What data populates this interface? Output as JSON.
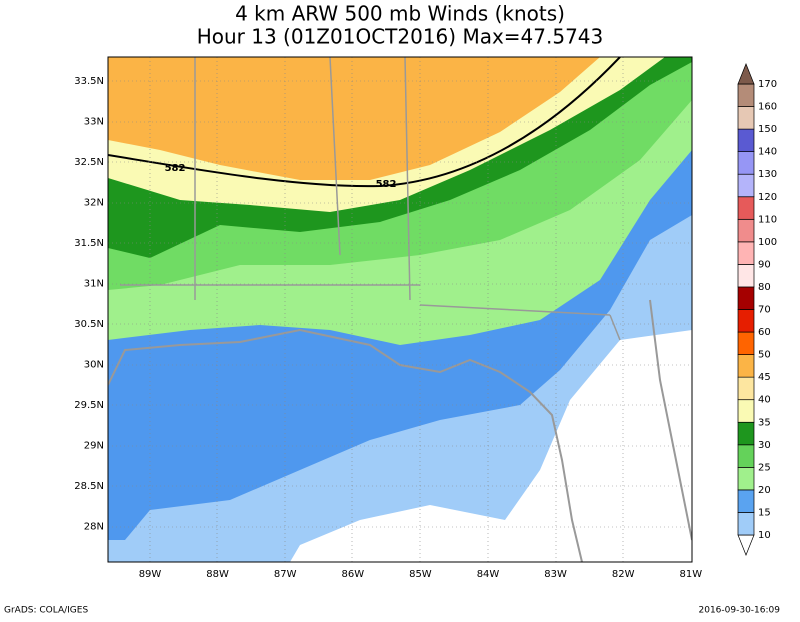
{
  "title": [
    "4 km ARW 500 mb Winds (knots)",
    "Hour 13 (01Z01OCT2016) Max=47.5743"
  ],
  "map": {
    "lat_labels": [
      "33.5N",
      "33N",
      "32.5N",
      "32N",
      "31.5N",
      "31N",
      "30.5N",
      "30N",
      "29.5N",
      "29N",
      "28.5N",
      "28N"
    ],
    "lon_labels": [
      "89W",
      "88W",
      "87W",
      "86W",
      "85W",
      "84W",
      "83W",
      "82W",
      "81W"
    ],
    "contour_labels": [
      "582",
      "582"
    ]
  },
  "colorbar": {
    "labels": [
      10,
      15,
      20,
      25,
      30,
      35,
      40,
      45,
      50,
      60,
      70,
      80,
      90,
      100,
      110,
      120,
      130,
      140,
      150,
      160,
      170
    ],
    "colors": [
      "#ffffff",
      "#a0ccf8",
      "#5aa3f0",
      "#a0f08c",
      "#64d25a",
      "#1e961e",
      "#fafab4",
      "#fde6a0",
      "#fbb446",
      "#ff6400",
      "#e61e00",
      "#a50000",
      "#ffe6e6",
      "#ffb4b4",
      "#f08c8c",
      "#e65a5a",
      "#b4b4fa",
      "#9696f5",
      "#5a5ad2",
      "#e6c8b4",
      "#b48c78",
      "#7d5a4b"
    ]
  },
  "footer": {
    "left": "GrADS: COLA/IGES",
    "right": "2016-09-30-16:09"
  }
}
